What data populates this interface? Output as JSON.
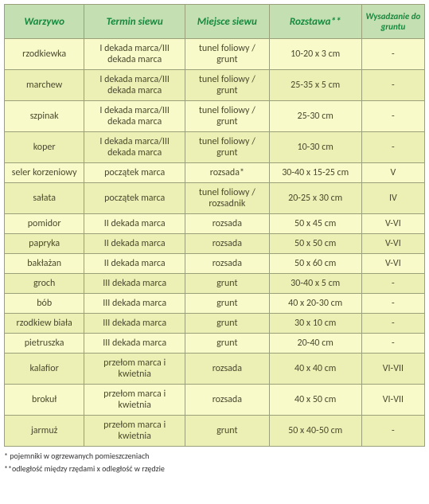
{
  "headers": [
    "Warzywo",
    "Termin siewu",
    "Miejsce siewu",
    "Rozstawa**",
    "Wysadzanie do gruntu"
  ],
  "rows": [
    {
      "c": [
        "rzodkiewka",
        "I dekada  marca/III dekada marca",
        "tunel foliowy / grunt",
        "10-20 x 3 cm",
        "-"
      ],
      "cls": "rA"
    },
    {
      "c": [
        "marchew",
        "I dekada  marca/III dekada marca",
        "tunel foliowy / grunt",
        "25-35 x 5 cm",
        "-"
      ],
      "cls": "rB"
    },
    {
      "c": [
        "szpinak",
        "I dekada  marca/III dekada marca",
        "tunel foliowy / grunt",
        "25-30 cm",
        "-"
      ],
      "cls": "rA"
    },
    {
      "c": [
        "koper",
        "I dekada  marca/III dekada marca",
        "tunel foliowy / grunt",
        "10-30 cm",
        "-"
      ],
      "cls": "rB"
    },
    {
      "c": [
        "seler korzeniowy",
        "początek marca",
        "rozsada*",
        "30-40 x 15-25 cm",
        "V"
      ],
      "cls": "rA"
    },
    {
      "c": [
        "sałata",
        "początek marca",
        "tunel foliowy / rozsadnik",
        "20-25 x 30 cm",
        "IV"
      ],
      "cls": "rB"
    },
    {
      "c": [
        "pomidor",
        "II dekada marca",
        "rozsada",
        "50 x 45 cm",
        "V-VI"
      ],
      "cls": "rA"
    },
    {
      "c": [
        "papryka",
        "II dekada marca",
        "rozsada",
        "50 x 50 cm",
        "V-VI"
      ],
      "cls": "rB"
    },
    {
      "c": [
        "bakłażan",
        "II dekada marca",
        "rozsada",
        "50 x 60 cm",
        "V-VI"
      ],
      "cls": "rA"
    },
    {
      "c": [
        "groch",
        "III dekada marca",
        "grunt",
        "30-40 x 5 cm",
        "-"
      ],
      "cls": "rB"
    },
    {
      "c": [
        "bób",
        "III dekada marca",
        "grunt",
        "40 x 20-30 cm",
        "-"
      ],
      "cls": "rA"
    },
    {
      "c": [
        "rzodkiew biała",
        "III dekada marca",
        "grunt",
        "30 x 10 cm",
        "-"
      ],
      "cls": "rB"
    },
    {
      "c": [
        "pietruszka",
        "III dekada marca",
        "grunt",
        "20-40 cm",
        "-"
      ],
      "cls": "rA"
    },
    {
      "c": [
        "kalafior",
        "przełom marca i kwietnia",
        "rozsada",
        "40 x 40 cm",
        "VI-VII"
      ],
      "cls": "rB"
    },
    {
      "c": [
        "brokuł",
        "przełom marca i kwietnia",
        "rozsada",
        "40 x 50 cm",
        "VI-VII"
      ],
      "cls": "rA"
    },
    {
      "c": [
        "jarmuż",
        "przełom marca i kwietnia",
        "grunt",
        "50 x 40-50 cm",
        "-"
      ],
      "cls": "rB"
    }
  ],
  "footnotes": [
    "* pojemniki w ogrzewanych pomieszczeniach",
    "**odległość między rzędami x odległość w rzędzie"
  ]
}
